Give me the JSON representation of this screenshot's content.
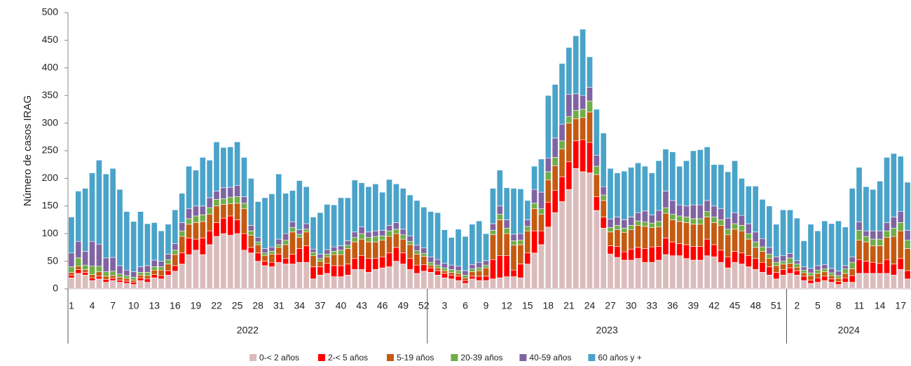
{
  "chart_data": {
    "type": "stacked_bar",
    "y_label": "Número de casos IRAG",
    "ylim": [
      0,
      500
    ],
    "yticks": [
      0,
      50,
      100,
      150,
      200,
      250,
      300,
      350,
      400,
      450,
      500
    ],
    "categories": [
      1,
      null,
      null,
      4,
      null,
      null,
      7,
      null,
      null,
      10,
      null,
      null,
      13,
      null,
      null,
      16,
      null,
      null,
      19,
      null,
      null,
      22,
      null,
      null,
      25,
      null,
      null,
      28,
      null,
      null,
      31,
      null,
      null,
      34,
      null,
      null,
      37,
      null,
      null,
      40,
      null,
      null,
      43,
      null,
      null,
      46,
      null,
      null,
      49,
      null,
      null,
      52,
      null,
      null,
      3,
      null,
      null,
      6,
      null,
      null,
      9,
      null,
      null,
      12,
      null,
      null,
      15,
      null,
      null,
      18,
      null,
      null,
      21,
      null,
      null,
      24,
      null,
      null,
      27,
      null,
      null,
      30,
      null,
      null,
      33,
      null,
      null,
      36,
      null,
      null,
      39,
      null,
      null,
      42,
      null,
      null,
      45,
      null,
      null,
      48,
      null,
      null,
      51,
      null,
      null,
      2,
      null,
      null,
      5,
      null,
      null,
      8,
      null,
      null,
      11,
      null,
      null,
      14,
      null,
      null,
      17,
      null
    ],
    "groups": [
      {
        "label": "2022",
        "size": 52
      },
      {
        "label": "2023",
        "size": 52
      },
      {
        "label": "2024",
        "size": 18
      }
    ],
    "legend": "bottom",
    "series": [
      {
        "name": "0-< 2 años",
        "color": "#dbbcbc",
        "values": [
          20,
          28,
          25,
          15,
          18,
          12,
          15,
          12,
          10,
          8,
          15,
          12,
          20,
          18,
          25,
          32,
          45,
          62,
          70,
          62,
          80,
          95,
          100,
          97,
          100,
          70,
          65,
          50,
          42,
          40,
          48,
          45,
          45,
          48,
          48,
          18,
          25,
          28,
          22,
          22,
          25,
          35,
          35,
          30,
          35,
          38,
          40,
          50,
          45,
          35,
          28,
          32,
          30,
          25,
          20,
          18,
          15,
          10,
          18,
          15,
          15,
          18,
          20,
          22,
          22,
          20,
          45,
          65,
          80,
          112,
          138,
          158,
          180,
          218,
          212,
          210,
          142,
          110,
          63,
          57,
          52,
          52,
          55,
          48,
          48,
          52,
          62,
          60,
          60,
          55,
          52,
          52,
          60,
          58,
          48,
          38,
          48,
          45,
          40,
          35,
          30,
          25,
          18,
          25,
          28,
          25,
          15,
          10,
          12,
          15,
          12,
          8,
          12,
          12,
          28,
          28,
          28,
          28,
          28,
          25,
          35,
          18
        ]
      },
      {
        "name": "2-< 5 años",
        "color": "#ff0000",
        "values": [
          5,
          7,
          5,
          5,
          5,
          5,
          4,
          4,
          4,
          4,
          5,
          6,
          6,
          6,
          8,
          10,
          20,
          30,
          20,
          30,
          25,
          25,
          28,
          35,
          25,
          30,
          10,
          15,
          8,
          8,
          15,
          10,
          18,
          25,
          30,
          22,
          15,
          18,
          20,
          20,
          20,
          20,
          25,
          25,
          20,
          20,
          25,
          25,
          20,
          20,
          15,
          12,
          8,
          8,
          8,
          7,
          8,
          5,
          5,
          8,
          8,
          35,
          40,
          38,
          12,
          25,
          20,
          40,
          25,
          45,
          40,
          45,
          50,
          50,
          58,
          55,
          25,
          20,
          15,
          20,
          15,
          20,
          20,
          25,
          28,
          25,
          30,
          25,
          22,
          25,
          25,
          25,
          30,
          22,
          22,
          20,
          20,
          20,
          20,
          20,
          18,
          15,
          12,
          10,
          10,
          8,
          8,
          6,
          8,
          8,
          6,
          5,
          8,
          12,
          25,
          22,
          20,
          18,
          25,
          20,
          20,
          15
        ]
      },
      {
        "name": "5-19 años",
        "color": "#c55a11",
        "values": [
          5,
          6,
          5,
          6,
          8,
          6,
          5,
          5,
          5,
          4,
          5,
          6,
          8,
          10,
          12,
          20,
          30,
          25,
          30,
          30,
          30,
          30,
          25,
          22,
          30,
          45,
          22,
          15,
          10,
          15,
          12,
          25,
          40,
          20,
          25,
          20,
          10,
          12,
          20,
          20,
          28,
          30,
          30,
          30,
          30,
          30,
          30,
          25,
          25,
          25,
          20,
          15,
          5,
          5,
          5,
          5,
          5,
          5,
          8,
          10,
          15,
          45,
          65,
          40,
          45,
          35,
          40,
          40,
          30,
          40,
          45,
          50,
          70,
          40,
          40,
          55,
          40,
          30,
          25,
          30,
          35,
          35,
          40,
          40,
          35,
          35,
          45,
          40,
          40,
          40,
          40,
          40,
          40,
          40,
          45,
          40,
          40,
          40,
          30,
          20,
          20,
          15,
          12,
          10,
          8,
          6,
          6,
          8,
          8,
          8,
          6,
          6,
          8,
          12,
          35,
          35,
          30,
          32,
          40,
          50,
          50,
          40
        ]
      },
      {
        "name": "20-39 años",
        "color": "#70ad47",
        "values": [
          10,
          15,
          8,
          15,
          10,
          8,
          8,
          6,
          5,
          5,
          5,
          6,
          6,
          6,
          8,
          8,
          10,
          10,
          12,
          12,
          12,
          12,
          10,
          12,
          12,
          10,
          8,
          5,
          5,
          5,
          5,
          8,
          8,
          6,
          5,
          6,
          5,
          5,
          6,
          8,
          6,
          8,
          10,
          8,
          10,
          8,
          10,
          8,
          8,
          6,
          6,
          5,
          5,
          5,
          5,
          5,
          5,
          5,
          5,
          5,
          5,
          8,
          10,
          10,
          8,
          8,
          8,
          10,
          10,
          15,
          15,
          15,
          12,
          15,
          15,
          20,
          15,
          10,
          8,
          8,
          8,
          8,
          8,
          8,
          8,
          10,
          10,
          10,
          10,
          10,
          10,
          10,
          10,
          10,
          10,
          10,
          10,
          10,
          10,
          10,
          8,
          8,
          6,
          5,
          10,
          6,
          5,
          5,
          6,
          5,
          5,
          5,
          8,
          12,
          18,
          10,
          12,
          12,
          12,
          15,
          15,
          15
        ]
      },
      {
        "name": "40-59 años",
        "color": "#8064a2",
        "values": [
          25,
          30,
          25,
          45,
          40,
          25,
          25,
          15,
          10,
          10,
          10,
          12,
          12,
          10,
          10,
          12,
          15,
          18,
          18,
          16,
          18,
          15,
          20,
          18,
          20,
          12,
          10,
          8,
          8,
          8,
          10,
          12,
          10,
          8,
          10,
          6,
          8,
          8,
          8,
          8,
          8,
          10,
          12,
          10,
          10,
          10,
          10,
          12,
          10,
          10,
          10,
          10,
          10,
          10,
          8,
          8,
          8,
          8,
          8,
          10,
          8,
          12,
          15,
          15,
          12,
          12,
          12,
          25,
          30,
          25,
          35,
          30,
          40,
          30,
          25,
          25,
          20,
          15,
          15,
          15,
          15,
          15,
          15,
          20,
          15,
          20,
          30,
          25,
          20,
          20,
          25,
          25,
          20,
          20,
          20,
          20,
          20,
          18,
          18,
          18,
          15,
          12,
          10,
          10,
          8,
          6,
          6,
          8,
          8,
          8,
          8,
          8,
          6,
          10,
          15,
          10,
          15,
          15,
          15,
          20,
          20,
          18
        ]
      },
      {
        "name": "60 años y +",
        "color": "#4aa3c9",
        "values": [
          65,
          91,
          114,
          124,
          152,
          152,
          161,
          138,
          106,
          91,
          100,
          76,
          68,
          55,
          54,
          61,
          53,
          77,
          65,
          88,
          68,
          89,
          73,
          73,
          79,
          71,
          85,
          65,
          92,
          96,
          118,
          73,
          57,
          89,
          67,
          58,
          75,
          82,
          76,
          87,
          78,
          94,
          80,
          82,
          85,
          69,
          83,
          70,
          74,
          74,
          81,
          74,
          82,
          85,
          61,
          50,
          67,
          62,
          73,
          75,
          49,
          64,
          65,
          58,
          83,
          81,
          35,
          42,
          60,
          113,
          97,
          110,
          85,
          105,
          120,
          55,
          83,
          97,
          92,
          80,
          88,
          90,
          90,
          81,
          76,
          90,
          76,
          88,
          70,
          82,
          98,
          100,
          97,
          75,
          80,
          84,
          94,
          67,
          68,
          83,
          71,
          75,
          59,
          83,
          79,
          77,
          47,
          80,
          63,
          79,
          81,
          91,
          70,
          124,
          99,
          80,
          75,
          90,
          118,
          115,
          100,
          87
        ]
      }
    ]
  }
}
